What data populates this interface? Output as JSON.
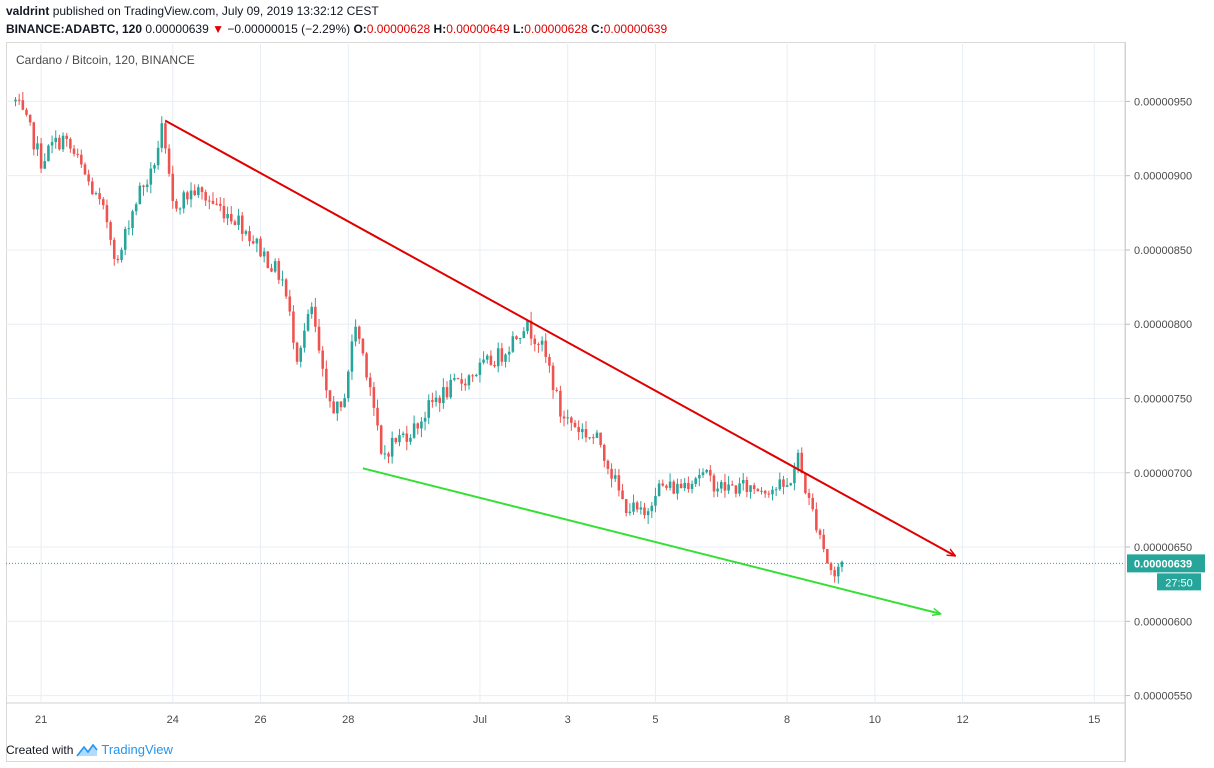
{
  "header": {
    "author": "valdrint",
    "published_text": "published on TradingView.com, July 09, 2019 13:32:12 CEST",
    "symbol": "BINANCE:ADABTC, 120",
    "last": "0.00000639",
    "change_arrow": "▼",
    "change": "−0.00000015 (−2.29%)",
    "o_label": "O:",
    "o_value": "0.00000628",
    "h_label": "H:",
    "h_value": "0.00000649",
    "l_label": "L:",
    "l_value": "0.00000628",
    "c_label": "C:",
    "c_value": "0.00000639"
  },
  "footer": {
    "created_with": "Created with",
    "brand": "TradingView",
    "brand_icon": "tradingview-logo-icon"
  },
  "colors": {
    "up": "#26a69a",
    "down": "#ef5350",
    "resistance": "#e00000",
    "support": "#33e033",
    "price_line": "#26a69a",
    "grid": "#e8eef3",
    "axis_text": "#4a4a4a"
  },
  "chart_data": {
    "type": "candlestick",
    "title": "Cardano / Bitcoin, 120, BINANCE",
    "symbol": "ADABTC",
    "interval": "120",
    "exchange": "BINANCE",
    "y_ticks": [
      "0.00000950",
      "0.00000900",
      "0.00000850",
      "0.00000800",
      "0.00000750",
      "0.00000700",
      "0.00000650",
      "0.00000600",
      "0.00000550"
    ],
    "ylim": [
      5.45e-06,
      9.9e-06
    ],
    "xlim_days_from_jun20": [
      0.2,
      25.7
    ],
    "x_ticks": [
      {
        "label": "21",
        "date": "2019-06-21"
      },
      {
        "label": "24",
        "date": "2019-06-24"
      },
      {
        "label": "26",
        "date": "2019-06-26"
      },
      {
        "label": "28",
        "date": "2019-06-28"
      },
      {
        "label": "Jul",
        "date": "2019-07-01"
      },
      {
        "label": "3",
        "date": "2019-07-03"
      },
      {
        "label": "5",
        "date": "2019-07-05"
      },
      {
        "label": "8",
        "date": "2019-07-08"
      },
      {
        "label": "10",
        "date": "2019-07-10"
      },
      {
        "label": "12",
        "date": "2019-07-12"
      },
      {
        "label": "15",
        "date": "2019-07-15"
      }
    ],
    "last_price": {
      "value": 6.39e-06,
      "label": "0.00000639",
      "countdown": "27:50"
    },
    "trendlines": [
      {
        "name": "resistance",
        "points": [
          {
            "date": "2019-06-23T20:00",
            "value": 9.37e-06
          },
          {
            "date": "2019-07-08T06:00",
            "value": 7.16e-06
          }
        ],
        "arrow_to": {
          "date": "2019-07-11T20:00",
          "value": 6.44e-06
        }
      },
      {
        "name": "support",
        "points": [
          {
            "date": "2019-06-28T08:00",
            "value": 7.03e-06
          },
          {
            "date": "2019-07-09T02:00",
            "value": 6.27e-06
          }
        ],
        "arrow_to": {
          "date": "2019-07-11T12:00",
          "value": 6.05e-06
        }
      }
    ],
    "price_path": [
      {
        "date": "2019-06-20T10:00",
        "value": 9.5e-06
      },
      {
        "date": "2019-06-20T18:00",
        "value": 9.3e-06
      },
      {
        "date": "2019-06-21T00:00",
        "value": 9.1e-06
      },
      {
        "date": "2019-06-21T06:00",
        "value": 9.2e-06
      },
      {
        "date": "2019-06-21T12:00",
        "value": 9.25e-06
      },
      {
        "date": "2019-06-21T20:00",
        "value": 9.1e-06
      },
      {
        "date": "2019-06-22T04:00",
        "value": 8.9e-06
      },
      {
        "date": "2019-06-22T12:00",
        "value": 8.7e-06
      },
      {
        "date": "2019-06-22T18:00",
        "value": 8.4e-06
      },
      {
        "date": "2019-06-23T00:00",
        "value": 8.7e-06
      },
      {
        "date": "2019-06-23T06:00",
        "value": 8.9e-06
      },
      {
        "date": "2019-06-23T12:00",
        "value": 9e-06
      },
      {
        "date": "2019-06-23T18:00",
        "value": 9.3e-06
      },
      {
        "date": "2019-06-24T00:00",
        "value": 8.8e-06
      },
      {
        "date": "2019-06-24T12:00",
        "value": 8.9e-06
      },
      {
        "date": "2019-06-25T00:00",
        "value": 8.8e-06
      },
      {
        "date": "2019-06-25T12:00",
        "value": 8.7e-06
      },
      {
        "date": "2019-06-26T00:00",
        "value": 8.5e-06
      },
      {
        "date": "2019-06-26T12:00",
        "value": 8.3e-06
      },
      {
        "date": "2019-06-26T20:00",
        "value": 7.8e-06
      },
      {
        "date": "2019-06-27T04:00",
        "value": 8.1e-06
      },
      {
        "date": "2019-06-27T12:00",
        "value": 7.5e-06
      },
      {
        "date": "2019-06-27T20:00",
        "value": 7.4e-06
      },
      {
        "date": "2019-06-28T04:00",
        "value": 8e-06
      },
      {
        "date": "2019-06-28T12:00",
        "value": 7.6e-06
      },
      {
        "date": "2019-06-28T18:00",
        "value": 7.1e-06
      },
      {
        "date": "2019-06-29T00:00",
        "value": 7.2e-06
      },
      {
        "date": "2019-06-29T12:00",
        "value": 7.3e-06
      },
      {
        "date": "2019-06-30T00:00",
        "value": 7.5e-06
      },
      {
        "date": "2019-06-30T12:00",
        "value": 7.6e-06
      },
      {
        "date": "2019-07-01T00:00",
        "value": 7.7e-06
      },
      {
        "date": "2019-07-01T12:00",
        "value": 7.8e-06
      },
      {
        "date": "2019-07-02T00:00",
        "value": 8e-06
      },
      {
        "date": "2019-07-02T08:00",
        "value": 7.9e-06
      },
      {
        "date": "2019-07-02T14:00",
        "value": 7.7e-06
      },
      {
        "date": "2019-07-02T20:00",
        "value": 7.4e-06
      },
      {
        "date": "2019-07-03T06:00",
        "value": 7.3e-06
      },
      {
        "date": "2019-07-03T18:00",
        "value": 7.2e-06
      },
      {
        "date": "2019-07-04T06:00",
        "value": 6.8e-06
      },
      {
        "date": "2019-07-04T18:00",
        "value": 6.7e-06
      },
      {
        "date": "2019-07-05T00:00",
        "value": 6.9e-06
      },
      {
        "date": "2019-07-05T12:00",
        "value": 6.9e-06
      },
      {
        "date": "2019-07-06T00:00",
        "value": 7e-06
      },
      {
        "date": "2019-07-06T12:00",
        "value": 6.9e-06
      },
      {
        "date": "2019-07-07T00:00",
        "value": 6.9e-06
      },
      {
        "date": "2019-07-07T12:00",
        "value": 6.9e-06
      },
      {
        "date": "2019-07-08T00:00",
        "value": 6.9e-06
      },
      {
        "date": "2019-07-08T06:00",
        "value": 7.1e-06
      },
      {
        "date": "2019-07-08T12:00",
        "value": 6.8e-06
      },
      {
        "date": "2019-07-08T18:00",
        "value": 6.6e-06
      },
      {
        "date": "2019-07-08T22:00",
        "value": 6.4e-06
      },
      {
        "date": "2019-07-09T02:00",
        "value": 6.3e-06
      },
      {
        "date": "2019-07-09T06:00",
        "value": 6.4e-06
      }
    ]
  }
}
